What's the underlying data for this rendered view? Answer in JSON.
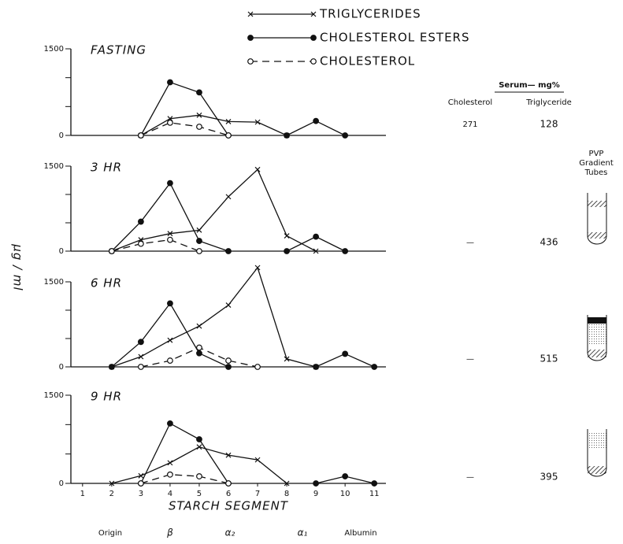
{
  "y_label": "µg / ml",
  "x_label": "STARCH SEGMENT",
  "bands": [
    "Origin",
    "β",
    "α₂",
    "α₁",
    "Albumin"
  ],
  "serum": {
    "title": "Serum— mg%",
    "columns": [
      "Cholesterol",
      "Triglyceride"
    ],
    "rows": [
      [
        "271",
        "128"
      ],
      [
        "—",
        "436"
      ],
      [
        "—",
        "515"
      ],
      [
        "—",
        "395"
      ]
    ]
  },
  "pvp": [
    "PVP",
    "Gradient",
    "Tubes"
  ],
  "chart_data": [
    {
      "type": "line",
      "title": "FASTING",
      "x": [
        1,
        2,
        3,
        4,
        5,
        6,
        7,
        8,
        9,
        10,
        11
      ],
      "xlim": [
        0.6,
        11.4
      ],
      "ylim": [
        0,
        1500
      ],
      "yticks": [
        0,
        1500
      ],
      "minor_yticks": [
        500,
        1000
      ],
      "series": [
        {
          "name": "TRIGLYCERIDES",
          "marker": "x",
          "dash": false,
          "color": "#111",
          "values": [
            null,
            null,
            0,
            290,
            350,
            240,
            230,
            0,
            null,
            null,
            null
          ]
        },
        {
          "name": "CHOLESTEROL ESTERS",
          "marker": "filled",
          "dash": false,
          "color": "#111",
          "values": [
            null,
            null,
            0,
            920,
            745,
            0,
            null,
            0,
            250,
            0,
            null
          ]
        },
        {
          "name": "CHOLESTEROL",
          "marker": "open",
          "dash": true,
          "color": "#111",
          "values": [
            null,
            null,
            0,
            220,
            150,
            0,
            null,
            null,
            null,
            null,
            null
          ]
        }
      ]
    },
    {
      "type": "line",
      "title": "3 HR",
      "x": [
        1,
        2,
        3,
        4,
        5,
        6,
        7,
        8,
        9,
        10,
        11
      ],
      "xlim": [
        0.6,
        11.4
      ],
      "ylim": [
        0,
        1500
      ],
      "yticks": [
        0,
        1500
      ],
      "minor_yticks": [
        500,
        1000
      ],
      "series": [
        {
          "marker": "x",
          "dash": false,
          "color": "#111",
          "values": [
            null,
            0,
            200,
            310,
            370,
            960,
            1440,
            270,
            0,
            null,
            null
          ]
        },
        {
          "marker": "filled",
          "dash": false,
          "color": "#111",
          "values": [
            null,
            0,
            520,
            1200,
            180,
            0,
            null,
            0,
            255,
            0,
            null
          ]
        },
        {
          "marker": "open",
          "dash": true,
          "color": "#111",
          "values": [
            null,
            0,
            130,
            200,
            0,
            null,
            null,
            null,
            null,
            null,
            null
          ]
        }
      ]
    },
    {
      "type": "line",
      "title": "6 HR",
      "x": [
        1,
        2,
        3,
        4,
        5,
        6,
        7,
        8,
        9,
        10,
        11
      ],
      "xlim": [
        0.6,
        11.4
      ],
      "ylim": [
        0,
        1500
      ],
      "yticks": [
        0,
        1500
      ],
      "minor_yticks": [
        500,
        1000
      ],
      "series": [
        {
          "marker": "x",
          "dash": false,
          "color": "#111",
          "values": [
            null,
            0,
            180,
            470,
            720,
            1090,
            1750,
            140,
            0,
            null,
            null
          ]
        },
        {
          "marker": "filled",
          "dash": false,
          "color": "#111",
          "values": [
            null,
            0,
            440,
            1120,
            240,
            0,
            null,
            null,
            0,
            230,
            0
          ]
        },
        {
          "marker": "open",
          "dash": true,
          "color": "#111",
          "values": [
            null,
            null,
            0,
            110,
            340,
            110,
            0,
            null,
            null,
            null,
            null
          ]
        }
      ]
    },
    {
      "type": "line",
      "title": "9 HR",
      "x": [
        1,
        2,
        3,
        4,
        5,
        6,
        7,
        8,
        9,
        10,
        11
      ],
      "xlim": [
        0.6,
        11.4
      ],
      "ylim": [
        0,
        1500
      ],
      "yticks": [
        0,
        1500
      ],
      "minor_yticks": [
        500,
        1000
      ],
      "xticks": [
        1,
        2,
        3,
        4,
        5,
        6,
        7,
        8,
        9,
        10,
        11
      ],
      "series": [
        {
          "marker": "x",
          "dash": false,
          "color": "#111",
          "values": [
            null,
            0,
            130,
            350,
            620,
            480,
            400,
            0,
            null,
            null,
            null
          ]
        },
        {
          "marker": "filled",
          "dash": false,
          "color": "#111",
          "values": [
            null,
            null,
            0,
            1020,
            750,
            0,
            null,
            null,
            0,
            120,
            0
          ]
        },
        {
          "marker": "open",
          "dash": true,
          "color": "#111",
          "values": [
            null,
            null,
            0,
            150,
            120,
            0,
            null,
            null,
            null,
            null,
            null
          ]
        }
      ]
    }
  ]
}
